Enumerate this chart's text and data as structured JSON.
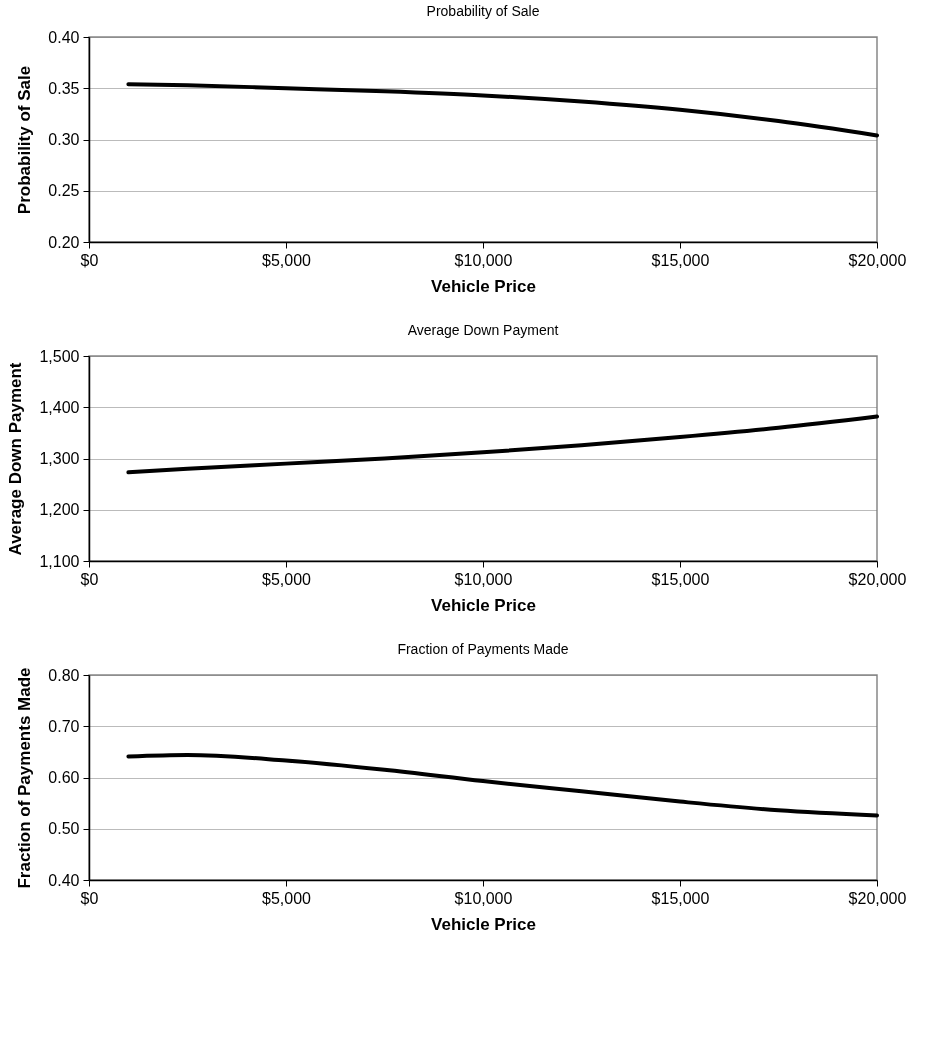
{
  "chart_data": [
    {
      "type": "line",
      "title": "Probability of Sale",
      "xlabel": "Vehicle Price",
      "ylabel": "Probability of Sale",
      "x": [
        1000,
        2500,
        5000,
        7500,
        10000,
        12500,
        15000,
        17500,
        20000
      ],
      "series": [
        {
          "color": "#000000",
          "values": [
            0.354,
            0.353,
            0.35,
            0.347,
            0.343,
            0.337,
            0.329,
            0.318,
            0.304
          ]
        }
      ],
      "xlim": [
        0,
        20000
      ],
      "xticks": [
        {
          "value": 0,
          "label": "$0"
        },
        {
          "value": 5000,
          "label": "$5,000"
        },
        {
          "value": 10000,
          "label": "$10,000"
        },
        {
          "value": 15000,
          "label": "$15,000"
        },
        {
          "value": 20000,
          "label": "$20,000"
        }
      ],
      "ylim": [
        0.2,
        0.4
      ],
      "yticks": [
        {
          "value": 0.2,
          "label": "0.20"
        },
        {
          "value": 0.25,
          "label": "0.25"
        },
        {
          "value": 0.3,
          "label": "0.30"
        },
        {
          "value": 0.35,
          "label": "0.35"
        },
        {
          "value": 0.4,
          "label": "0.40"
        }
      ],
      "grid": "y",
      "marker": "none",
      "line_style": "solid"
    },
    {
      "type": "line",
      "title": "Average Down Payment",
      "xlabel": "Vehicle Price",
      "ylabel": "Average Down Payment",
      "x": [
        1000,
        2500,
        5000,
        7500,
        10000,
        12500,
        15000,
        17500,
        20000
      ],
      "series": [
        {
          "color": "#000000",
          "values": [
            1273,
            1280,
            1290,
            1300,
            1312,
            1326,
            1342,
            1360,
            1382
          ]
        }
      ],
      "xlim": [
        0,
        20000
      ],
      "xticks": [
        {
          "value": 0,
          "label": "$0"
        },
        {
          "value": 5000,
          "label": "$5,000"
        },
        {
          "value": 10000,
          "label": "$10,000"
        },
        {
          "value": 15000,
          "label": "$15,000"
        },
        {
          "value": 20000,
          "label": "$20,000"
        }
      ],
      "ylim": [
        1100,
        1500
      ],
      "yticks": [
        {
          "value": 1100,
          "label": "1,100"
        },
        {
          "value": 1200,
          "label": "1,200"
        },
        {
          "value": 1300,
          "label": "1,300"
        },
        {
          "value": 1400,
          "label": "1,400"
        },
        {
          "value": 1500,
          "label": "1,500"
        }
      ],
      "grid": "y",
      "marker": "none",
      "line_style": "solid"
    },
    {
      "type": "line",
      "title": "Fraction of Payments Made",
      "xlabel": "Vehicle Price",
      "ylabel": "Fraction of Payments Made",
      "x": [
        1000,
        2500,
        5000,
        7500,
        10000,
        12500,
        15000,
        17500,
        20000
      ],
      "series": [
        {
          "color": "#000000",
          "values": [
            0.641,
            0.644,
            0.633,
            0.615,
            0.593,
            0.573,
            0.553,
            0.536,
            0.526
          ]
        }
      ],
      "xlim": [
        0,
        20000
      ],
      "xticks": [
        {
          "value": 0,
          "label": "$0"
        },
        {
          "value": 5000,
          "label": "$5,000"
        },
        {
          "value": 10000,
          "label": "$10,000"
        },
        {
          "value": 15000,
          "label": "$15,000"
        },
        {
          "value": 20000,
          "label": "$20,000"
        }
      ],
      "ylim": [
        0.4,
        0.8
      ],
      "yticks": [
        {
          "value": 0.4,
          "label": "0.40"
        },
        {
          "value": 0.5,
          "label": "0.50"
        },
        {
          "value": 0.6,
          "label": "0.60"
        },
        {
          "value": 0.7,
          "label": "0.70"
        },
        {
          "value": 0.8,
          "label": "0.80"
        }
      ],
      "grid": "y",
      "marker": "none",
      "line_style": "solid"
    }
  ]
}
